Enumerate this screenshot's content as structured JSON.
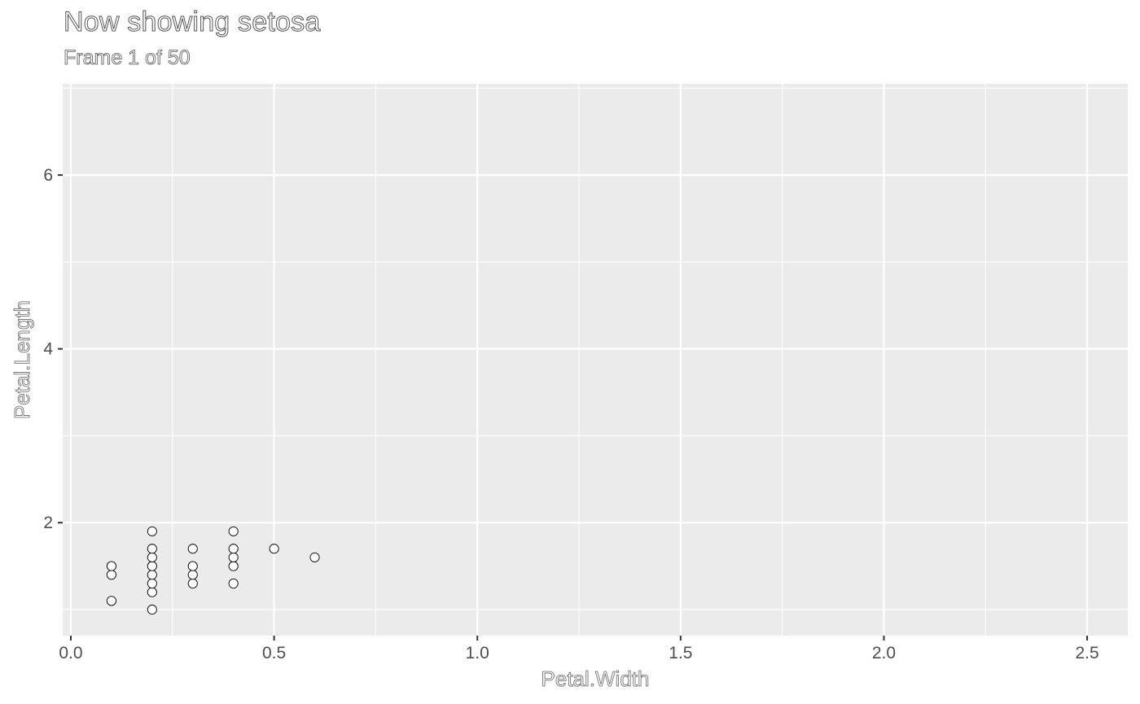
{
  "chart_data": {
    "type": "scatter",
    "title": "Now showing setosa",
    "subtitle": "Frame 1 of 50",
    "xlabel": "Petal.Width",
    "ylabel": "Petal.Length",
    "xlim": [
      -0.02,
      2.6
    ],
    "ylim": [
      0.7,
      7.05
    ],
    "x_ticks": [
      0.0,
      0.5,
      1.0,
      1.5,
      2.0,
      2.5
    ],
    "x_tick_labels": [
      "0.0",
      "0.5",
      "1.0",
      "1.5",
      "2.0",
      "2.5"
    ],
    "y_ticks": [
      2,
      4,
      6
    ],
    "y_tick_labels": [
      "2",
      "4",
      "6"
    ],
    "grid": true,
    "background": "#ebebeb",
    "grid_color": "#ffffff",
    "point_fill": "#ffffff",
    "point_stroke": "#000000",
    "series": [
      {
        "points": [
          [
            0.1,
            1.1
          ],
          [
            0.1,
            1.4
          ],
          [
            0.1,
            1.5
          ],
          [
            0.2,
            1.0
          ],
          [
            0.2,
            1.2
          ],
          [
            0.2,
            1.3
          ],
          [
            0.2,
            1.4
          ],
          [
            0.2,
            1.5
          ],
          [
            0.2,
            1.6
          ],
          [
            0.2,
            1.7
          ],
          [
            0.2,
            1.9
          ],
          [
            0.3,
            1.3
          ],
          [
            0.3,
            1.4
          ],
          [
            0.3,
            1.5
          ],
          [
            0.3,
            1.7
          ],
          [
            0.4,
            1.3
          ],
          [
            0.4,
            1.5
          ],
          [
            0.4,
            1.6
          ],
          [
            0.4,
            1.7
          ],
          [
            0.4,
            1.9
          ],
          [
            0.5,
            1.7
          ],
          [
            0.6,
            1.6
          ]
        ]
      }
    ]
  }
}
